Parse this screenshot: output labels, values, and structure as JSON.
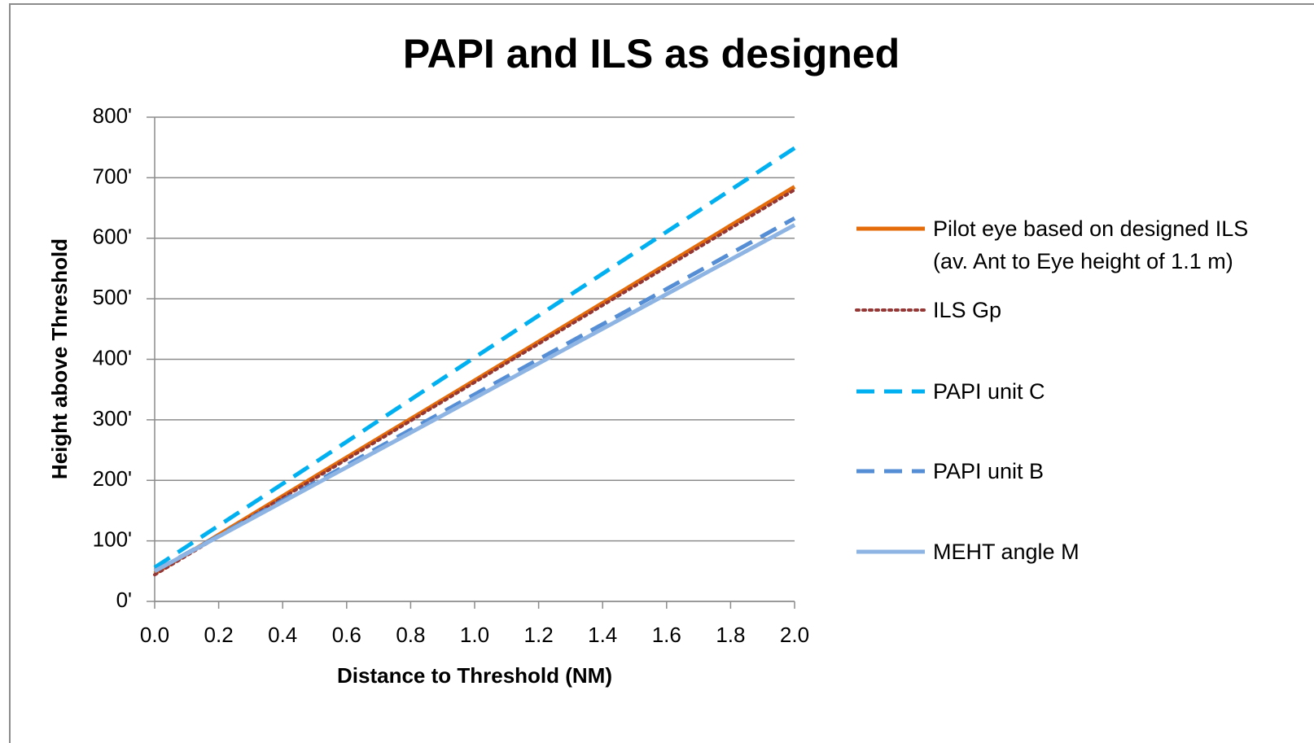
{
  "chart_data": {
    "type": "line",
    "title": "PAPI and ILS as designed",
    "x_label": "Distance to Threshold (NM)",
    "y_label": "Height above Threshold",
    "x": [
      0,
      0.5,
      1.0,
      1.5,
      2.0
    ],
    "series": [
      {
        "name": "Pilot eye based on designed ILS (av. Ant to Eye height of 1.1 m)",
        "color": "#e46c0a",
        "dash": "solid",
        "values": [
          46,
          206,
          365,
          525,
          685
        ]
      },
      {
        "name": "ILS Gp",
        "color": "#953735",
        "dash": "dotted",
        "values": [
          44,
          203,
          362,
          521,
          680
        ]
      },
      {
        "name": "PAPI unit C",
        "color": "#00b0f0",
        "dash": "dashed",
        "values": [
          56,
          229,
          403,
          576,
          749
        ]
      },
      {
        "name": "PAPI unit B",
        "color": "#558ed5",
        "dash": "dashed",
        "values": [
          50,
          196,
          342,
          487,
          633
        ]
      },
      {
        "name": "MEHT angle M",
        "color": "#8eb4e3",
        "dash": "solid",
        "values": [
          50,
          193,
          336,
          479,
          622
        ]
      }
    ],
    "xlim": [
      0,
      2.0
    ],
    "xticks": [
      {
        "value": 0,
        "label": "0.0"
      },
      0.2,
      0.4,
      0.6,
      0.8,
      {
        "value": 1.0,
        "label": "1.0"
      },
      1.2,
      1.4,
      1.6,
      1.8,
      {
        "value": 2.0,
        "label": "2.0"
      }
    ],
    "ylim": [
      0,
      800
    ],
    "yticks": [
      {
        "value": 0,
        "label": "0'"
      },
      {
        "value": 100,
        "label": "100'"
      },
      {
        "value": 200,
        "label": "200'"
      },
      {
        "value": 300,
        "label": "300'"
      },
      {
        "value": 400,
        "label": "400'"
      },
      {
        "value": 500,
        "label": "500'"
      },
      {
        "value": 600,
        "label": "600'"
      },
      {
        "value": 700,
        "label": "700'"
      },
      {
        "value": 800,
        "label": "800'"
      }
    ],
    "grid": true,
    "legend": "right"
  }
}
